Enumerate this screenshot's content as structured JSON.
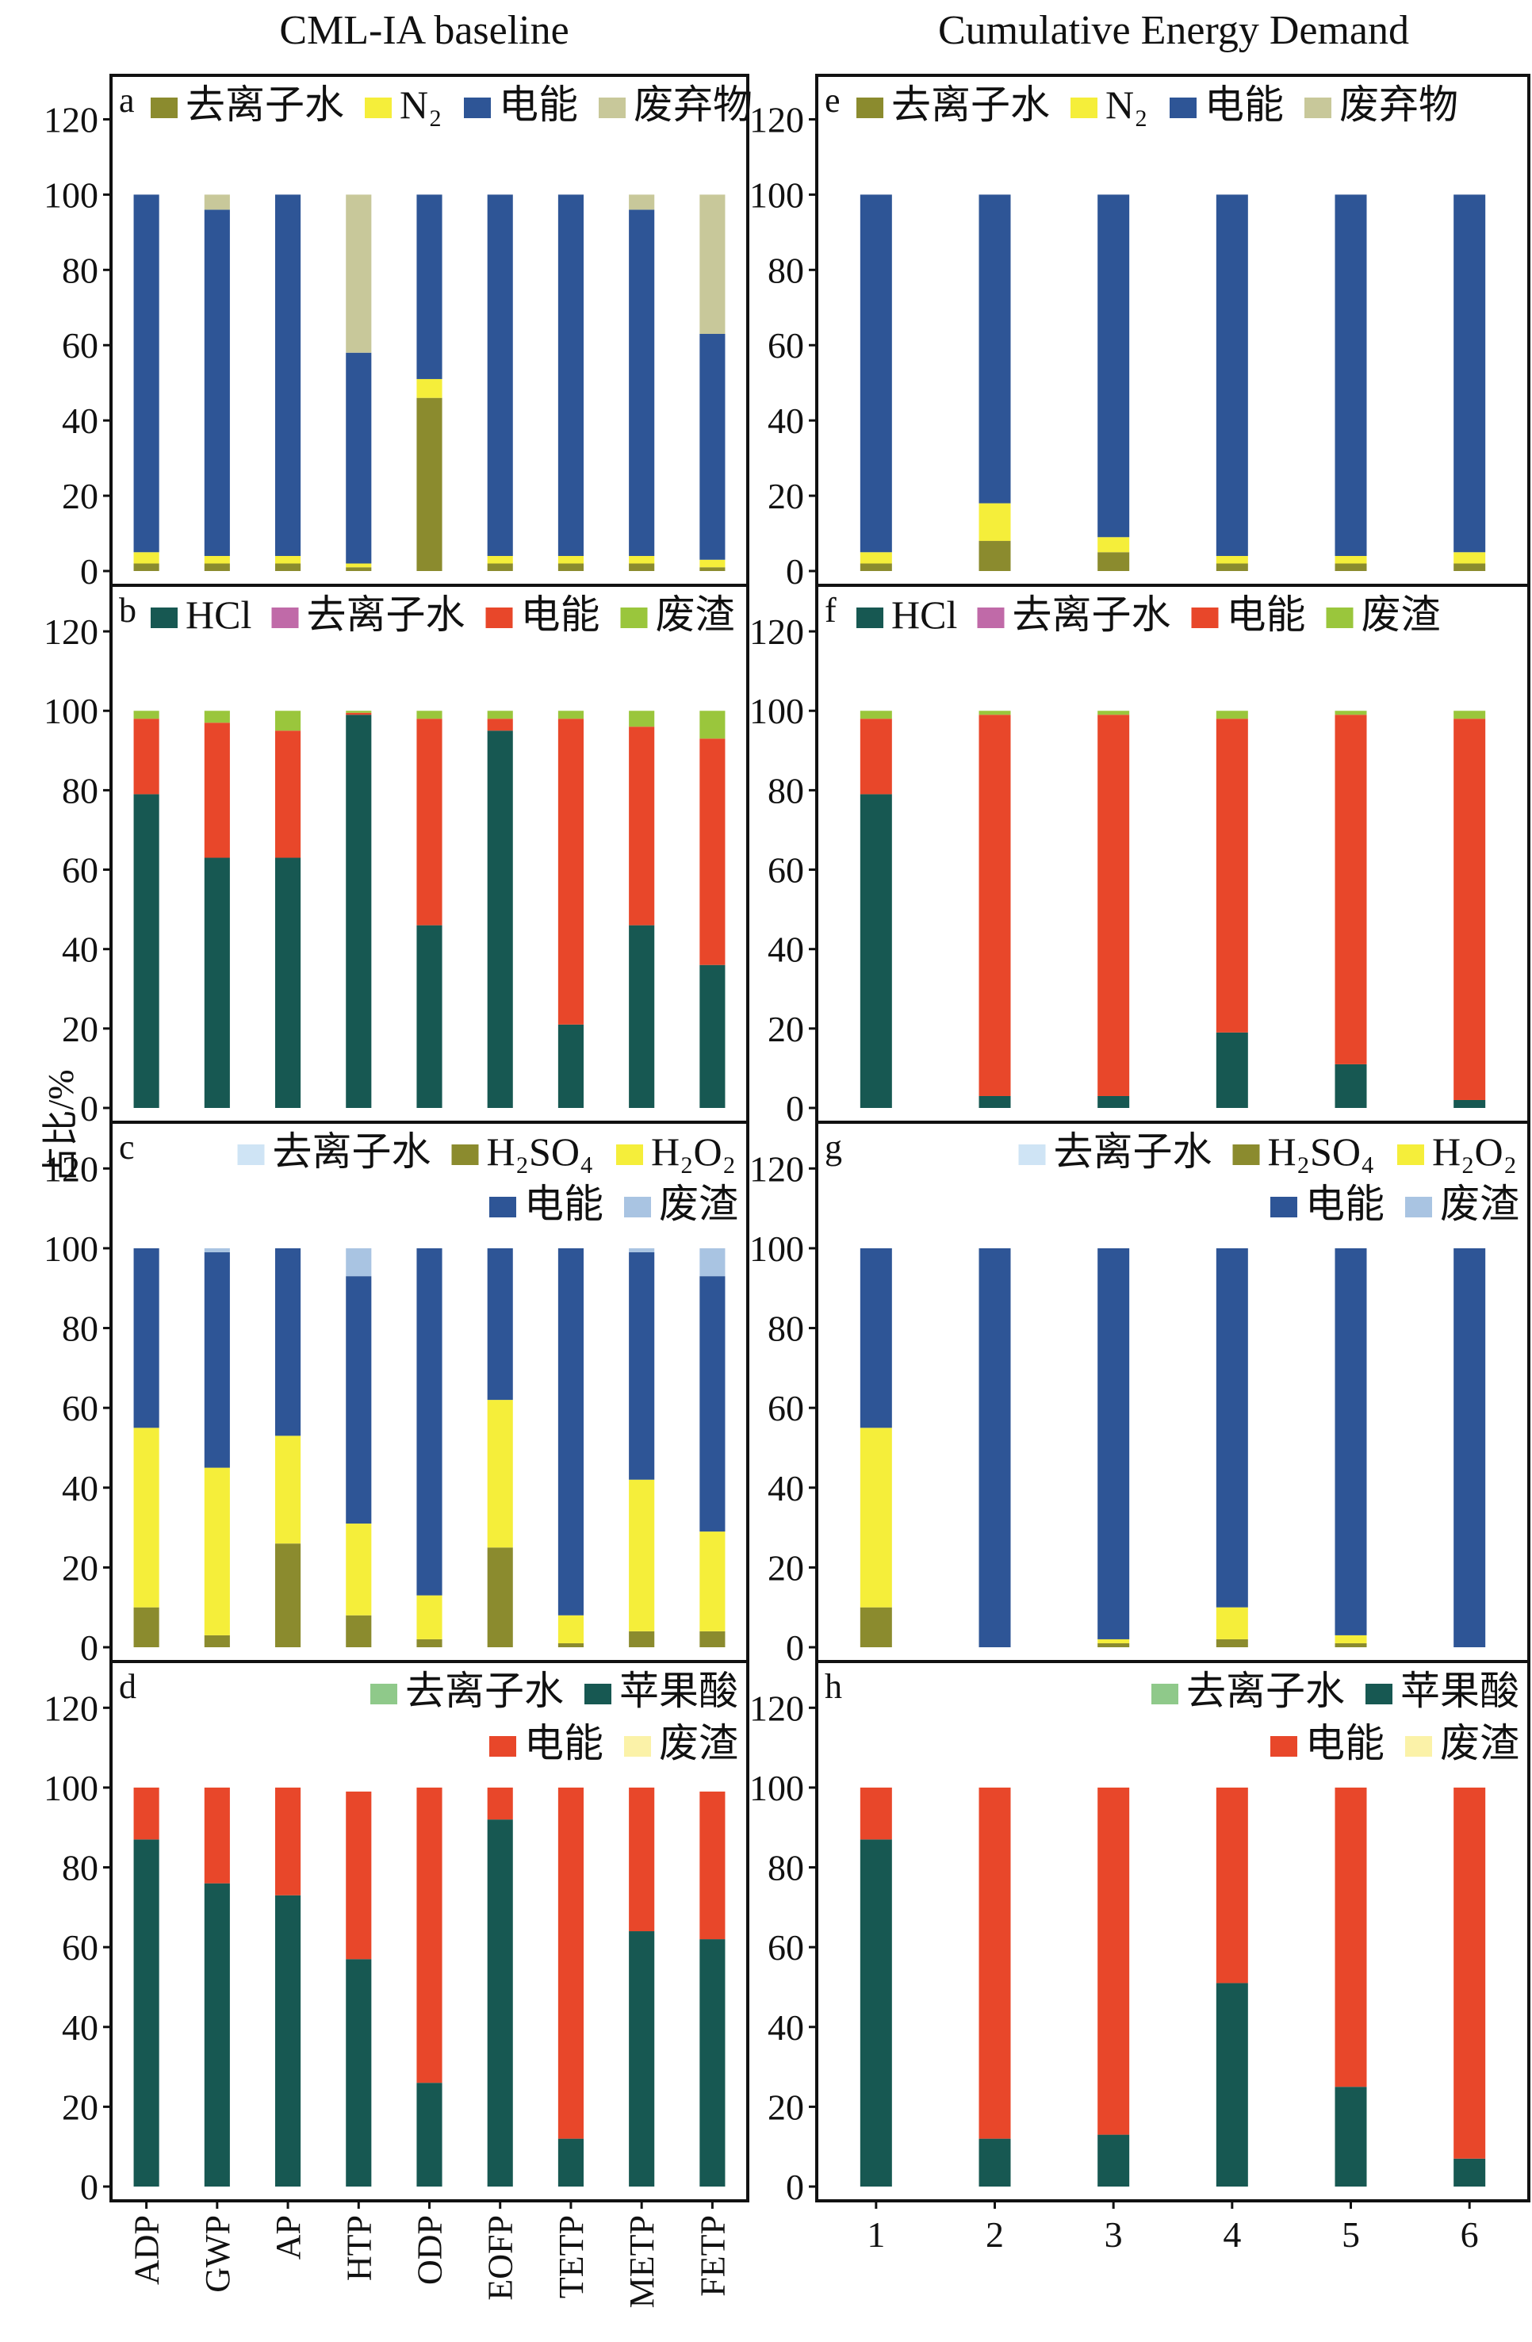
{
  "figure": {
    "column_titles": [
      "CML-IA baseline",
      "Cumulative Energy Demand"
    ],
    "ylabel": "占比/%"
  },
  "chart_data": [
    {
      "id": "a",
      "type": "bar",
      "stacked": true,
      "categories": [
        "ADP",
        "GWP",
        "AP",
        "HTP",
        "ODP",
        "EOFP",
        "TETP",
        "METP",
        "FETP"
      ],
      "ylim": [
        0,
        130
      ],
      "yticks": [
        0,
        20,
        40,
        60,
        80,
        100,
        120
      ],
      "legend": [
        "去离子水",
        "N₂",
        "电能",
        "废弃物"
      ],
      "series": [
        {
          "name": "去离子水",
          "color": "#8b8b2e",
          "values": [
            2,
            2,
            2,
            1,
            46,
            2,
            2,
            2,
            1
          ]
        },
        {
          "name": "N₂",
          "color": "#f5ee3a",
          "values": [
            3,
            2,
            2,
            1,
            5,
            2,
            2,
            2,
            2
          ]
        },
        {
          "name": "电能",
          "color": "#2e5596",
          "values": [
            95,
            92,
            96,
            56,
            49,
            96,
            96,
            92,
            60
          ]
        },
        {
          "name": "废弃物",
          "color": "#c8c89a",
          "values": [
            0,
            4,
            0,
            42,
            0,
            0,
            0,
            4,
            37
          ]
        }
      ]
    },
    {
      "id": "b",
      "type": "bar",
      "stacked": true,
      "categories": [
        "ADP",
        "GWP",
        "AP",
        "HTP",
        "ODP",
        "EOFP",
        "TETP",
        "METP",
        "FETP"
      ],
      "ylim": [
        0,
        130
      ],
      "yticks": [
        0,
        20,
        40,
        60,
        80,
        100,
        120
      ],
      "legend": [
        "HCl",
        "去离子水",
        "电能",
        "废渣"
      ],
      "series": [
        {
          "name": "HCl",
          "color": "#175852",
          "values": [
            79,
            63,
            63,
            99,
            46,
            95,
            21,
            46,
            36
          ]
        },
        {
          "name": "去离子水",
          "color": "#c06aa8",
          "values": [
            0,
            0,
            0,
            0,
            0,
            0,
            0,
            0,
            0
          ]
        },
        {
          "name": "电能",
          "color": "#e8472a",
          "values": [
            19,
            34,
            32,
            0.5,
            52,
            3,
            77,
            50,
            57
          ]
        },
        {
          "name": "废渣",
          "color": "#9ac63c",
          "values": [
            2,
            3,
            5,
            0.5,
            2,
            2,
            2,
            4,
            7
          ]
        }
      ]
    },
    {
      "id": "c",
      "type": "bar",
      "stacked": true,
      "categories": [
        "ADP",
        "GWP",
        "AP",
        "HTP",
        "ODP",
        "EOFP",
        "TETP",
        "METP",
        "FETP"
      ],
      "ylim": [
        0,
        130
      ],
      "yticks": [
        0,
        20,
        40,
        60,
        80,
        100,
        120
      ],
      "legend": [
        "去离子水",
        "H₂SO₄",
        "H₂O₂",
        "电能",
        "废渣"
      ],
      "series": [
        {
          "name": "去离子水",
          "color": "#cfe4f5",
          "values": [
            0,
            0,
            0,
            0,
            0,
            0,
            0,
            0,
            0
          ]
        },
        {
          "name": "H₂SO₄",
          "color": "#8b8b2e",
          "values": [
            10,
            3,
            26,
            8,
            2,
            25,
            1,
            4,
            4
          ]
        },
        {
          "name": "H₂O₂",
          "color": "#f5ee3a",
          "values": [
            45,
            42,
            27,
            23,
            11,
            37,
            7,
            38,
            25
          ]
        },
        {
          "name": "电能",
          "color": "#2e5596",
          "values": [
            45,
            54,
            47,
            62,
            87,
            38,
            92,
            57,
            64
          ]
        },
        {
          "name": "废渣",
          "color": "#a9c4e2",
          "values": [
            0,
            1,
            0,
            7,
            0,
            0,
            0,
            1,
            7
          ]
        }
      ]
    },
    {
      "id": "d",
      "type": "bar",
      "stacked": true,
      "categories": [
        "ADP",
        "GWP",
        "AP",
        "HTP",
        "ODP",
        "EOFP",
        "TETP",
        "METP",
        "FETP"
      ],
      "ylim": [
        0,
        130
      ],
      "yticks": [
        0,
        20,
        40,
        60,
        80,
        100,
        120
      ],
      "legend": [
        "去离子水",
        "苹果酸",
        "电能",
        "废渣"
      ],
      "series": [
        {
          "name": "去离子水",
          "color": "#8fc98a",
          "values": [
            0,
            0,
            0,
            0,
            0,
            0,
            0,
            0,
            0
          ]
        },
        {
          "name": "苹果酸",
          "color": "#175852",
          "values": [
            87,
            76,
            73,
            57,
            26,
            92,
            12,
            64,
            62
          ]
        },
        {
          "name": "电能",
          "color": "#e8472a",
          "values": [
            13,
            24,
            27,
            42,
            74,
            8,
            88,
            36,
            37
          ]
        },
        {
          "name": "废渣",
          "color": "#fbf2a8",
          "values": [
            0,
            0,
            0,
            0,
            0,
            0,
            0,
            0,
            0
          ]
        }
      ]
    },
    {
      "id": "e",
      "type": "bar",
      "stacked": true,
      "categories": [
        "1",
        "2",
        "3",
        "4",
        "5",
        "6"
      ],
      "ylim": [
        0,
        130
      ],
      "yticks": [
        0,
        20,
        40,
        60,
        80,
        100,
        120
      ],
      "legend": [
        "去离子水",
        "N₂",
        "电能",
        "废弃物"
      ],
      "series": [
        {
          "name": "去离子水",
          "color": "#8b8b2e",
          "values": [
            2,
            8,
            5,
            2,
            2,
            2
          ]
        },
        {
          "name": "N₂",
          "color": "#f5ee3a",
          "values": [
            3,
            10,
            4,
            2,
            2,
            3
          ]
        },
        {
          "name": "电能",
          "color": "#2e5596",
          "values": [
            95,
            82,
            91,
            96,
            96,
            95
          ]
        },
        {
          "name": "废弃物",
          "color": "#c8c89a",
          "values": [
            0,
            0,
            0,
            0,
            0,
            0
          ]
        }
      ]
    },
    {
      "id": "f",
      "type": "bar",
      "stacked": true,
      "categories": [
        "1",
        "2",
        "3",
        "4",
        "5",
        "6"
      ],
      "ylim": [
        0,
        130
      ],
      "yticks": [
        0,
        20,
        40,
        60,
        80,
        100,
        120
      ],
      "legend": [
        "HCl",
        "去离子水",
        "电能",
        "废渣"
      ],
      "series": [
        {
          "name": "HCl",
          "color": "#175852",
          "values": [
            79,
            3,
            3,
            19,
            11,
            2
          ]
        },
        {
          "name": "去离子水",
          "color": "#c06aa8",
          "values": [
            0,
            0,
            0,
            0,
            0,
            0
          ]
        },
        {
          "name": "电能",
          "color": "#e8472a",
          "values": [
            19,
            96,
            96,
            79,
            88,
            96
          ]
        },
        {
          "name": "废渣",
          "color": "#9ac63c",
          "values": [
            2,
            1,
            1,
            2,
            1,
            2
          ]
        }
      ]
    },
    {
      "id": "g",
      "type": "bar",
      "stacked": true,
      "categories": [
        "1",
        "2",
        "3",
        "4",
        "5",
        "6"
      ],
      "ylim": [
        0,
        130
      ],
      "yticks": [
        0,
        20,
        40,
        60,
        80,
        100,
        120
      ],
      "legend": [
        "去离子水",
        "H₂SO₄",
        "H₂O₂",
        "电能",
        "废渣"
      ],
      "series": [
        {
          "name": "去离子水",
          "color": "#cfe4f5",
          "values": [
            0,
            0,
            0,
            0,
            0,
            0
          ]
        },
        {
          "name": "H₂SO₄",
          "color": "#8b8b2e",
          "values": [
            10,
            0,
            1,
            2,
            1,
            0
          ]
        },
        {
          "name": "H₂O₂",
          "color": "#f5ee3a",
          "values": [
            45,
            0,
            1,
            8,
            2,
            0
          ]
        },
        {
          "name": "电能",
          "color": "#2e5596",
          "values": [
            45,
            100,
            98,
            90,
            97,
            100
          ]
        },
        {
          "name": "废渣",
          "color": "#a9c4e2",
          "values": [
            0,
            0,
            0,
            0,
            0,
            0
          ]
        }
      ]
    },
    {
      "id": "h",
      "type": "bar",
      "stacked": true,
      "categories": [
        "1",
        "2",
        "3",
        "4",
        "5",
        "6"
      ],
      "ylim": [
        0,
        130
      ],
      "yticks": [
        0,
        20,
        40,
        60,
        80,
        100,
        120
      ],
      "legend": [
        "去离子水",
        "苹果酸",
        "电能",
        "废渣"
      ],
      "series": [
        {
          "name": "去离子水",
          "color": "#8fc98a",
          "values": [
            0,
            0,
            0,
            0,
            0,
            0
          ]
        },
        {
          "name": "苹果酸",
          "color": "#175852",
          "values": [
            87,
            12,
            13,
            51,
            25,
            7
          ]
        },
        {
          "name": "电能",
          "color": "#e8472a",
          "values": [
            13,
            88,
            87,
            49,
            75,
            93
          ]
        },
        {
          "name": "废渣",
          "color": "#fbf2a8",
          "values": [
            0,
            0,
            0,
            0,
            0,
            0
          ]
        }
      ]
    }
  ]
}
